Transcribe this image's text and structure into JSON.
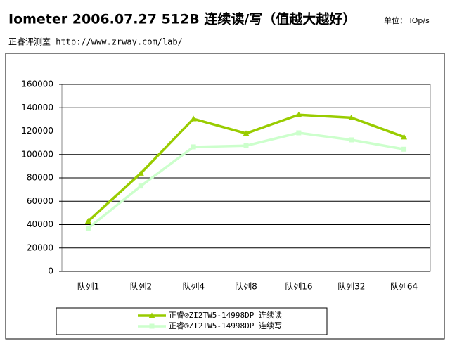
{
  "chart_data": {
    "type": "line",
    "title": "Iometer 2006.07.27 512B 连续读/写（值越大越好）",
    "unit_label": "单位： IOp/s",
    "subtitle": "正睿评测室 http://www.zrway.com/lab/",
    "categories": [
      "队列1",
      "队列2",
      "队列4",
      "队列8",
      "队列16",
      "队列32",
      "队列64"
    ],
    "series": [
      {
        "name": "正睿®ZI2TW5-14998DP 连续读",
        "color": "#99cc00",
        "marker": "triangle",
        "values": [
          43000,
          84000,
          130500,
          118000,
          134000,
          131500,
          115000
        ]
      },
      {
        "name": "正睿®ZI2TW5-14998DP 连续写",
        "color": "#ccffcc",
        "marker": "square",
        "values": [
          37000,
          73000,
          106500,
          107500,
          118500,
          112500,
          104500
        ]
      }
    ],
    "ylim": [
      0,
      160000
    ],
    "yticks": [
      0,
      20000,
      40000,
      60000,
      80000,
      100000,
      120000,
      140000,
      160000
    ],
    "grid": true,
    "legend": "bottom"
  }
}
